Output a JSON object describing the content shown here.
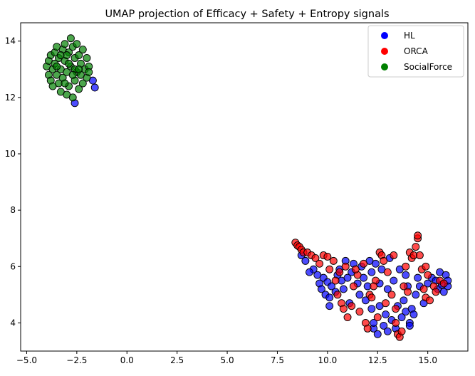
{
  "chart_data": {
    "type": "scatter",
    "title": "UMAP projection of Efficacy + Safety + Entropy signals",
    "xlabel": "",
    "ylabel": "",
    "xlim": [
      -5.3,
      17.0
    ],
    "ylim": [
      3.0,
      14.65
    ],
    "xticks": [
      -5.0,
      -2.5,
      0.0,
      2.5,
      5.0,
      7.5,
      10.0,
      12.5,
      15.0
    ],
    "xtick_labels": [
      "−5.0",
      "−2.5",
      "0.0",
      "2.5",
      "5.0",
      "7.5",
      "10.0",
      "12.5",
      "15.0"
    ],
    "yticks": [
      4,
      6,
      8,
      10,
      12,
      14
    ],
    "ytick_labels": [
      "4",
      "6",
      "8",
      "10",
      "12",
      "14"
    ],
    "grid": false,
    "legend_position": "top-right",
    "series": [
      {
        "name": "HL",
        "color": "#0000ff",
        "points": [
          [
            -1.7,
            12.6
          ],
          [
            -1.6,
            12.35
          ],
          [
            -2.6,
            11.8
          ],
          [
            8.7,
            6.4
          ],
          [
            8.9,
            6.2
          ],
          [
            9.3,
            5.9
          ],
          [
            9.5,
            5.7
          ],
          [
            9.6,
            5.4
          ],
          [
            9.7,
            5.2
          ],
          [
            9.8,
            5.6
          ],
          [
            9.9,
            5.0
          ],
          [
            10.0,
            5.45
          ],
          [
            10.1,
            4.9
          ],
          [
            10.2,
            5.3
          ],
          [
            10.1,
            4.6
          ],
          [
            10.4,
            5.1
          ],
          [
            10.5,
            5.7
          ],
          [
            10.6,
            5.9
          ],
          [
            10.7,
            5.5
          ],
          [
            10.8,
            5.2
          ],
          [
            11.0,
            5.6
          ],
          [
            11.2,
            5.8
          ],
          [
            11.3,
            6.1
          ],
          [
            11.5,
            5.4
          ],
          [
            11.6,
            5.0
          ],
          [
            11.7,
            6.0
          ],
          [
            11.8,
            5.6
          ],
          [
            11.9,
            4.8
          ],
          [
            12.0,
            5.3
          ],
          [
            12.1,
            6.2
          ],
          [
            12.2,
            4.5
          ],
          [
            12.2,
            5.8
          ],
          [
            12.3,
            3.8
          ],
          [
            12.3,
            4.0
          ],
          [
            12.4,
            6.1
          ],
          [
            12.5,
            3.6
          ],
          [
            12.6,
            5.4
          ],
          [
            12.7,
            5.9
          ],
          [
            12.8,
            3.9
          ],
          [
            12.9,
            4.3
          ],
          [
            13.0,
            5.2
          ],
          [
            13.0,
            3.7
          ],
          [
            13.1,
            6.3
          ],
          [
            13.2,
            4.1
          ],
          [
            13.3,
            5.5
          ],
          [
            13.4,
            3.8
          ],
          [
            13.5,
            4.6
          ],
          [
            13.6,
            5.9
          ],
          [
            13.7,
            4.2
          ],
          [
            13.8,
            4.8
          ],
          [
            13.9,
            4.4
          ],
          [
            14.0,
            5.3
          ],
          [
            14.1,
            4.0
          ],
          [
            14.2,
            4.5
          ],
          [
            14.3,
            4.3
          ],
          [
            14.4,
            5.0
          ],
          [
            14.5,
            5.6
          ],
          [
            14.6,
            5.3
          ],
          [
            14.8,
            4.7
          ],
          [
            15.0,
            5.4
          ],
          [
            15.2,
            5.6
          ],
          [
            15.4,
            5.5
          ],
          [
            15.5,
            5.2
          ],
          [
            15.6,
            5.8
          ],
          [
            15.7,
            5.35
          ],
          [
            15.8,
            5.1
          ],
          [
            15.9,
            5.7
          ],
          [
            16.0,
            5.3
          ],
          [
            16.0,
            5.5
          ],
          [
            9.1,
            5.8
          ],
          [
            11.1,
            4.7
          ],
          [
            12.6,
            4.6
          ],
          [
            14.1,
            3.9
          ],
          [
            13.9,
            5.7
          ],
          [
            10.9,
            6.2
          ]
        ]
      },
      {
        "name": "ORCA",
        "color": "#ff0000",
        "points": [
          [
            8.4,
            6.85
          ],
          [
            8.5,
            6.75
          ],
          [
            8.6,
            6.7
          ],
          [
            8.7,
            6.6
          ],
          [
            8.8,
            6.5
          ],
          [
            9.0,
            6.5
          ],
          [
            9.2,
            6.4
          ],
          [
            9.4,
            6.3
          ],
          [
            9.6,
            6.1
          ],
          [
            9.8,
            6.4
          ],
          [
            10.0,
            6.35
          ],
          [
            10.1,
            5.9
          ],
          [
            10.3,
            6.2
          ],
          [
            10.4,
            5.5
          ],
          [
            10.6,
            5.8
          ],
          [
            10.7,
            4.7
          ],
          [
            10.8,
            4.5
          ],
          [
            10.9,
            6.0
          ],
          [
            11.0,
            4.2
          ],
          [
            11.2,
            4.6
          ],
          [
            11.3,
            5.3
          ],
          [
            11.5,
            5.7
          ],
          [
            11.6,
            4.4
          ],
          [
            11.8,
            6.1
          ],
          [
            11.9,
            4.0
          ],
          [
            12.0,
            3.8
          ],
          [
            12.1,
            5.0
          ],
          [
            12.2,
            4.9
          ],
          [
            12.4,
            5.5
          ],
          [
            12.5,
            4.2
          ],
          [
            12.6,
            6.5
          ],
          [
            12.7,
            6.4
          ],
          [
            12.8,
            6.2
          ],
          [
            12.9,
            4.7
          ],
          [
            13.0,
            5.8
          ],
          [
            13.2,
            5.0
          ],
          [
            13.3,
            6.4
          ],
          [
            13.4,
            4.5
          ],
          [
            13.5,
            3.6
          ],
          [
            13.6,
            3.5
          ],
          [
            13.7,
            3.7
          ],
          [
            13.8,
            5.3
          ],
          [
            13.9,
            6.0
          ],
          [
            14.0,
            5.1
          ],
          [
            14.1,
            6.5
          ],
          [
            14.2,
            6.3
          ],
          [
            14.3,
            6.4
          ],
          [
            14.4,
            6.7
          ],
          [
            14.5,
            7.0
          ],
          [
            14.5,
            7.1
          ],
          [
            14.6,
            6.4
          ],
          [
            14.7,
            5.9
          ],
          [
            14.8,
            5.2
          ],
          [
            14.9,
            4.9
          ],
          [
            15.0,
            5.7
          ],
          [
            15.1,
            4.8
          ],
          [
            15.3,
            5.3
          ],
          [
            15.4,
            5.1
          ],
          [
            15.6,
            5.5
          ],
          [
            15.8,
            5.4
          ],
          [
            13.4,
            4.0
          ],
          [
            10.5,
            5.0
          ],
          [
            12.3,
            5.3
          ],
          [
            11.4,
            5.9
          ],
          [
            14.9,
            6.0
          ]
        ]
      },
      {
        "name": "SocialForce",
        "color": "#008000",
        "points": [
          [
            -4.0,
            13.1
          ],
          [
            -3.9,
            13.3
          ],
          [
            -3.9,
            12.8
          ],
          [
            -3.8,
            13.5
          ],
          [
            -3.8,
            12.6
          ],
          [
            -3.7,
            13.0
          ],
          [
            -3.7,
            12.4
          ],
          [
            -3.6,
            13.6
          ],
          [
            -3.6,
            13.2
          ],
          [
            -3.5,
            12.8
          ],
          [
            -3.5,
            13.8
          ],
          [
            -3.4,
            12.5
          ],
          [
            -3.4,
            13.4
          ],
          [
            -3.3,
            12.2
          ],
          [
            -3.3,
            13.0
          ],
          [
            -3.2,
            13.7
          ],
          [
            -3.2,
            12.7
          ],
          [
            -3.1,
            13.9
          ],
          [
            -3.1,
            13.3
          ],
          [
            -3.0,
            12.1
          ],
          [
            -3.0,
            12.9
          ],
          [
            -2.9,
            13.6
          ],
          [
            -2.9,
            12.4
          ],
          [
            -2.8,
            14.1
          ],
          [
            -2.8,
            13.1
          ],
          [
            -2.7,
            12.0
          ],
          [
            -2.7,
            13.8
          ],
          [
            -2.6,
            12.6
          ],
          [
            -2.6,
            13.4
          ],
          [
            -2.5,
            12.9
          ],
          [
            -2.5,
            13.9
          ],
          [
            -2.4,
            12.3
          ],
          [
            -2.4,
            13.5
          ],
          [
            -2.3,
            12.8
          ],
          [
            -2.3,
            13.2
          ],
          [
            -2.2,
            13.7
          ],
          [
            -2.2,
            12.5
          ],
          [
            -2.1,
            13.0
          ],
          [
            -2.0,
            13.4
          ],
          [
            -2.0,
            12.7
          ],
          [
            -1.9,
            13.1
          ],
          [
            -1.9,
            12.9
          ],
          [
            -3.3,
            13.5
          ],
          [
            -2.9,
            13.2
          ],
          [
            -2.6,
            13.0
          ],
          [
            -3.0,
            13.5
          ],
          [
            -2.7,
            12.8
          ],
          [
            -3.5,
            13.1
          ],
          [
            -2.4,
            13.0
          ],
          [
            -3.1,
            12.5
          ]
        ]
      }
    ]
  }
}
